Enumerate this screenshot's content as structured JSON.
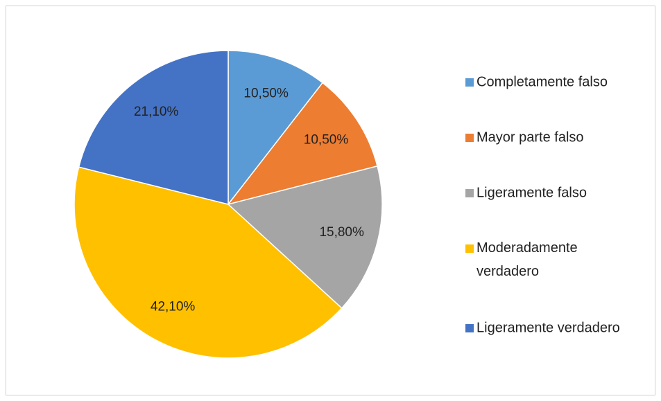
{
  "chart_data": {
    "type": "pie",
    "categories": [
      "Completamente falso",
      "Mayor parte falso",
      "Ligeramente falso",
      "Moderadamente verdadero",
      "Ligeramente verdadero"
    ],
    "values": [
      10.5,
      10.5,
      15.8,
      42.1,
      21.1
    ],
    "value_labels": [
      "10,50%",
      "10,50%",
      "15,80%",
      "42,10%",
      "21,10%"
    ],
    "colors": [
      "#5b9bd5",
      "#ed7d31",
      "#a5a5a5",
      "#ffc000",
      "#4472c4"
    ],
    "legend": "right"
  }
}
